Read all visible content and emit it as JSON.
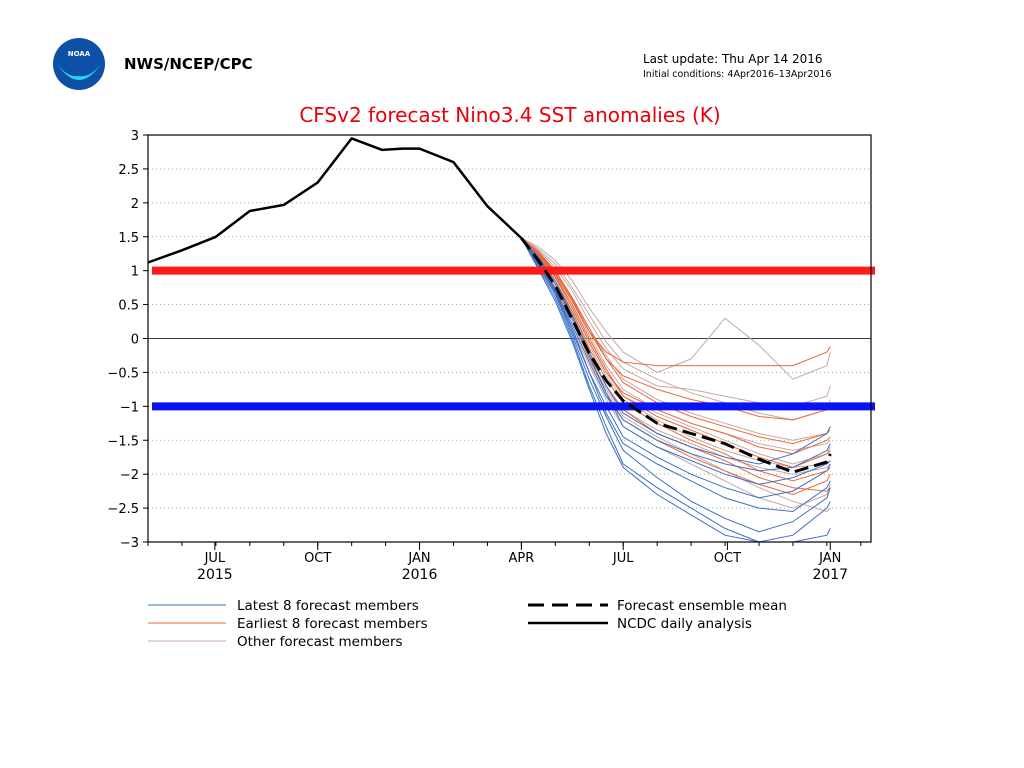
{
  "header": {
    "agency": "NWS/NCEP/CPC",
    "logo_text": "NOAA",
    "last_update": "Last update: Thu Apr 14 2016",
    "initial_conditions": "Initial conditions: 4Apr2016–13Apr2016"
  },
  "chart_data": {
    "type": "line",
    "title": "CFSv2 forecast Nino3.4 SST anomalies (K)",
    "xlabel": "",
    "ylabel": "",
    "ylim": [
      -3,
      3
    ],
    "xlim": [
      0,
      21.3
    ],
    "x_ticks": [
      {
        "x": 1.97,
        "line1": "JUL",
        "line2": "2015"
      },
      {
        "x": 5,
        "line1": "OCT",
        "line2": ""
      },
      {
        "x": 8,
        "line1": "JAN",
        "line2": "2016"
      },
      {
        "x": 11,
        "line1": "APR",
        "line2": ""
      },
      {
        "x": 14,
        "line1": "JUL",
        "line2": ""
      },
      {
        "x": 17.07,
        "line1": "OCT",
        "line2": ""
      },
      {
        "x": 20.1,
        "line1": "JAN",
        "line2": "2017"
      }
    ],
    "y_ticks": [
      {
        "v": 3,
        "label": "3"
      },
      {
        "v": 2.5,
        "label": "2.5"
      },
      {
        "v": 2,
        "label": "2"
      },
      {
        "v": 1.5,
        "label": "1.5"
      },
      {
        "v": 1,
        "label": "1"
      },
      {
        "v": 0.5,
        "label": "0.5"
      },
      {
        "v": 0,
        "label": "0"
      },
      {
        "v": -0.5,
        "label": "−0.5"
      },
      {
        "v": -1,
        "label": "−1"
      },
      {
        "v": -1.5,
        "label": "−1.5"
      },
      {
        "v": -2,
        "label": "−2"
      },
      {
        "v": -2.5,
        "label": "−2.5"
      },
      {
        "v": -3,
        "label": "−3"
      }
    ],
    "grid": true,
    "thresholds": [
      {
        "name": "el-nino-threshold",
        "value": 1,
        "color": "#ff1a1a"
      },
      {
        "name": "la-nina-threshold",
        "value": -1,
        "color": "#0a14f0"
      }
    ],
    "forecast_x": [
      11,
      11.5,
      12,
      12.5,
      13,
      13.5,
      14,
      15,
      16,
      17,
      18,
      19,
      20,
      20.1
    ],
    "analysis": {
      "name": "NCDC daily analysis",
      "color": "#000000",
      "x": [
        0,
        1,
        2,
        3,
        4,
        5,
        6,
        6.9,
        7.5,
        8,
        9,
        10,
        11
      ],
      "y": [
        1.12,
        1.3,
        1.5,
        1.88,
        1.97,
        2.3,
        2.95,
        2.78,
        2.8,
        2.8,
        2.6,
        1.95,
        1.48
      ]
    },
    "ensemble_mean": {
      "name": "Forecast ensemble mean",
      "color": "#000000",
      "y": [
        1.48,
        1.15,
        0.78,
        0.28,
        -0.22,
        -0.62,
        -0.92,
        -1.25,
        -1.4,
        -1.55,
        -1.78,
        -1.97,
        -1.82,
        -1.7
      ]
    },
    "members": [
      {
        "group": "latest",
        "color": "#3a70c8",
        "y": [
          1.48,
          1.05,
          0.6,
          0.0,
          -0.7,
          -1.3,
          -1.85,
          -2.2,
          -2.5,
          -2.8,
          -3.0,
          -2.9,
          -2.5,
          -2.4
        ]
      },
      {
        "group": "latest",
        "color": "#3a70c8",
        "y": [
          1.48,
          1.12,
          0.7,
          0.15,
          -0.5,
          -1.1,
          -1.55,
          -1.85,
          -2.1,
          -2.35,
          -2.5,
          -2.55,
          -2.2,
          -2.1
        ]
      },
      {
        "group": "latest",
        "color": "#3a70c8",
        "y": [
          1.48,
          1.08,
          0.65,
          0.05,
          -0.6,
          -1.15,
          -1.65,
          -2.05,
          -2.4,
          -2.65,
          -2.85,
          -2.7,
          -2.35,
          -2.2
        ]
      },
      {
        "group": "latest",
        "color": "#3a70c8",
        "y": [
          1.48,
          1.18,
          0.8,
          0.3,
          -0.25,
          -0.8,
          -1.3,
          -1.6,
          -1.8,
          -2.0,
          -2.15,
          -2.05,
          -1.85,
          -1.8
        ]
      },
      {
        "group": "latest",
        "color": "#3a70c8",
        "y": [
          1.48,
          1.15,
          0.72,
          0.2,
          -0.35,
          -0.85,
          -1.2,
          -1.5,
          -1.7,
          -1.85,
          -1.95,
          -1.9,
          -1.65,
          -1.55
        ]
      },
      {
        "group": "latest",
        "color": "#3a70c8",
        "y": [
          1.48,
          1.02,
          0.55,
          -0.05,
          -0.75,
          -1.4,
          -1.9,
          -2.3,
          -2.6,
          -2.9,
          -3.0,
          -3.0,
          -2.9,
          -2.8
        ]
      },
      {
        "group": "latest",
        "color": "#3a70c8",
        "y": [
          1.48,
          1.2,
          0.85,
          0.35,
          -0.2,
          -0.7,
          -1.1,
          -1.4,
          -1.6,
          -1.75,
          -1.85,
          -1.7,
          -1.4,
          -1.3
        ]
      },
      {
        "group": "latest",
        "color": "#3a70c8",
        "y": [
          1.48,
          1.1,
          0.68,
          0.1,
          -0.5,
          -1.0,
          -1.45,
          -1.75,
          -2.0,
          -2.2,
          -2.35,
          -2.25,
          -1.95,
          -1.85
        ]
      },
      {
        "group": "earliest",
        "color": "#e86a38",
        "y": [
          1.48,
          1.25,
          0.95,
          0.55,
          0.1,
          -0.2,
          -0.35,
          -0.4,
          -0.4,
          -0.4,
          -0.4,
          -0.4,
          -0.2,
          -0.12
        ]
      },
      {
        "group": "earliest",
        "color": "#e86a38",
        "y": [
          1.48,
          1.22,
          0.9,
          0.45,
          -0.05,
          -0.5,
          -0.8,
          -1.05,
          -1.25,
          -1.4,
          -1.6,
          -1.7,
          -1.5,
          -1.45
        ]
      },
      {
        "group": "earliest",
        "color": "#e86a38",
        "y": [
          1.48,
          1.2,
          0.85,
          0.4,
          -0.15,
          -0.6,
          -0.95,
          -1.25,
          -1.5,
          -1.7,
          -1.95,
          -2.1,
          -1.95,
          -1.9
        ]
      },
      {
        "group": "earliest",
        "color": "#e86a38",
        "y": [
          1.48,
          1.28,
          1.0,
          0.6,
          0.15,
          -0.3,
          -0.65,
          -0.95,
          -1.15,
          -1.3,
          -1.45,
          -1.55,
          -1.4,
          -1.3
        ]
      },
      {
        "group": "earliest",
        "color": "#e86a38",
        "y": [
          1.48,
          1.15,
          0.75,
          0.3,
          -0.3,
          -0.8,
          -1.2,
          -1.5,
          -1.75,
          -1.95,
          -2.15,
          -2.3,
          -2.1,
          -2.0
        ]
      },
      {
        "group": "earliest",
        "color": "#e86a38",
        "y": [
          1.48,
          1.24,
          0.92,
          0.5,
          0.0,
          -0.45,
          -0.85,
          -1.15,
          -1.35,
          -1.55,
          -1.75,
          -1.9,
          -1.7,
          -1.65
        ]
      },
      {
        "group": "earliest",
        "color": "#e86a38",
        "y": [
          1.48,
          1.18,
          0.8,
          0.35,
          -0.2,
          -0.7,
          -1.05,
          -1.4,
          -1.6,
          -1.8,
          -2.05,
          -2.2,
          -2.25,
          -2.2
        ]
      },
      {
        "group": "earliest",
        "color": "#e86a38",
        "y": [
          1.48,
          1.26,
          0.98,
          0.58,
          0.1,
          -0.3,
          -0.55,
          -0.75,
          -0.9,
          -1.0,
          -1.15,
          -1.2,
          -1.05,
          -0.95
        ]
      },
      {
        "group": "other",
        "color": "#c8a8a8",
        "y": [
          1.48,
          1.35,
          1.15,
          0.85,
          0.45,
          0.1,
          -0.2,
          -0.5,
          -0.3,
          0.3,
          -0.1,
          -0.6,
          -0.4,
          -0.2
        ]
      },
      {
        "group": "other",
        "color": "#c8a8a8",
        "y": [
          1.48,
          1.3,
          1.05,
          0.7,
          0.25,
          -0.15,
          -0.45,
          -0.7,
          -0.75,
          -0.85,
          -0.95,
          -1.0,
          -0.85,
          -0.7
        ]
      },
      {
        "group": "other",
        "color": "#c8a8a8",
        "y": [
          1.48,
          1.2,
          0.85,
          0.4,
          -0.1,
          -0.55,
          -0.9,
          -1.2,
          -1.45,
          -1.65,
          -1.8,
          -1.9,
          -1.85,
          -1.8
        ]
      },
      {
        "group": "other",
        "color": "#c8a8a8",
        "y": [
          1.48,
          1.15,
          0.75,
          0.25,
          -0.3,
          -0.75,
          -1.15,
          -1.45,
          -1.7,
          -1.95,
          -2.2,
          -2.4,
          -2.55,
          -2.5
        ]
      },
      {
        "group": "other",
        "color": "#c8a8a8",
        "y": [
          1.48,
          1.32,
          1.1,
          0.75,
          0.35,
          -0.05,
          -0.35,
          -0.6,
          -0.8,
          -0.95,
          -1.1,
          -1.2,
          -1.05,
          -0.9
        ]
      },
      {
        "group": "other",
        "color": "#c8a8a8",
        "y": [
          1.48,
          1.22,
          0.9,
          0.45,
          -0.05,
          -0.5,
          -0.85,
          -1.1,
          -1.3,
          -1.5,
          -1.7,
          -1.85,
          -1.7,
          -1.6
        ]
      },
      {
        "group": "other",
        "color": "#c8a8a8",
        "y": [
          1.48,
          1.28,
          1.0,
          0.6,
          0.15,
          -0.25,
          -0.6,
          -0.9,
          -1.1,
          -1.25,
          -1.4,
          -1.5,
          -1.4,
          -1.35
        ]
      },
      {
        "group": "other",
        "color": "#c8a8a8",
        "y": [
          1.48,
          1.1,
          0.65,
          0.15,
          -0.4,
          -0.9,
          -1.3,
          -1.6,
          -1.85,
          -2.1,
          -2.35,
          -2.5,
          -2.3,
          -2.15
        ]
      },
      {
        "group": "other",
        "color": "#c8a8a8",
        "y": [
          1.48,
          1.25,
          0.95,
          0.55,
          0.05,
          -0.4,
          -0.75,
          -1.05,
          -1.25,
          -1.4,
          -1.55,
          -1.65,
          -1.55,
          -1.5
        ]
      },
      {
        "group": "other",
        "color": "#c8a8a8",
        "y": [
          1.48,
          1.17,
          0.8,
          0.3,
          -0.25,
          -0.7,
          -1.05,
          -1.35,
          -1.55,
          -1.75,
          -1.9,
          -2.0,
          -1.9,
          -1.85
        ]
      }
    ],
    "legend": {
      "placement": "bottom",
      "items": [
        {
          "label": "Latest 8 forecast members",
          "color": "#3a70c8",
          "style": "thin"
        },
        {
          "label": "Earliest 8 forecast members",
          "color": "#e86a38",
          "style": "thin"
        },
        {
          "label": "Other forecast members",
          "color": "#c8a8a8",
          "style": "thin"
        },
        {
          "label": "Forecast ensemble mean",
          "color": "#000000",
          "style": "dashed"
        },
        {
          "label": "NCDC daily analysis",
          "color": "#000000",
          "style": "solid"
        }
      ]
    }
  }
}
